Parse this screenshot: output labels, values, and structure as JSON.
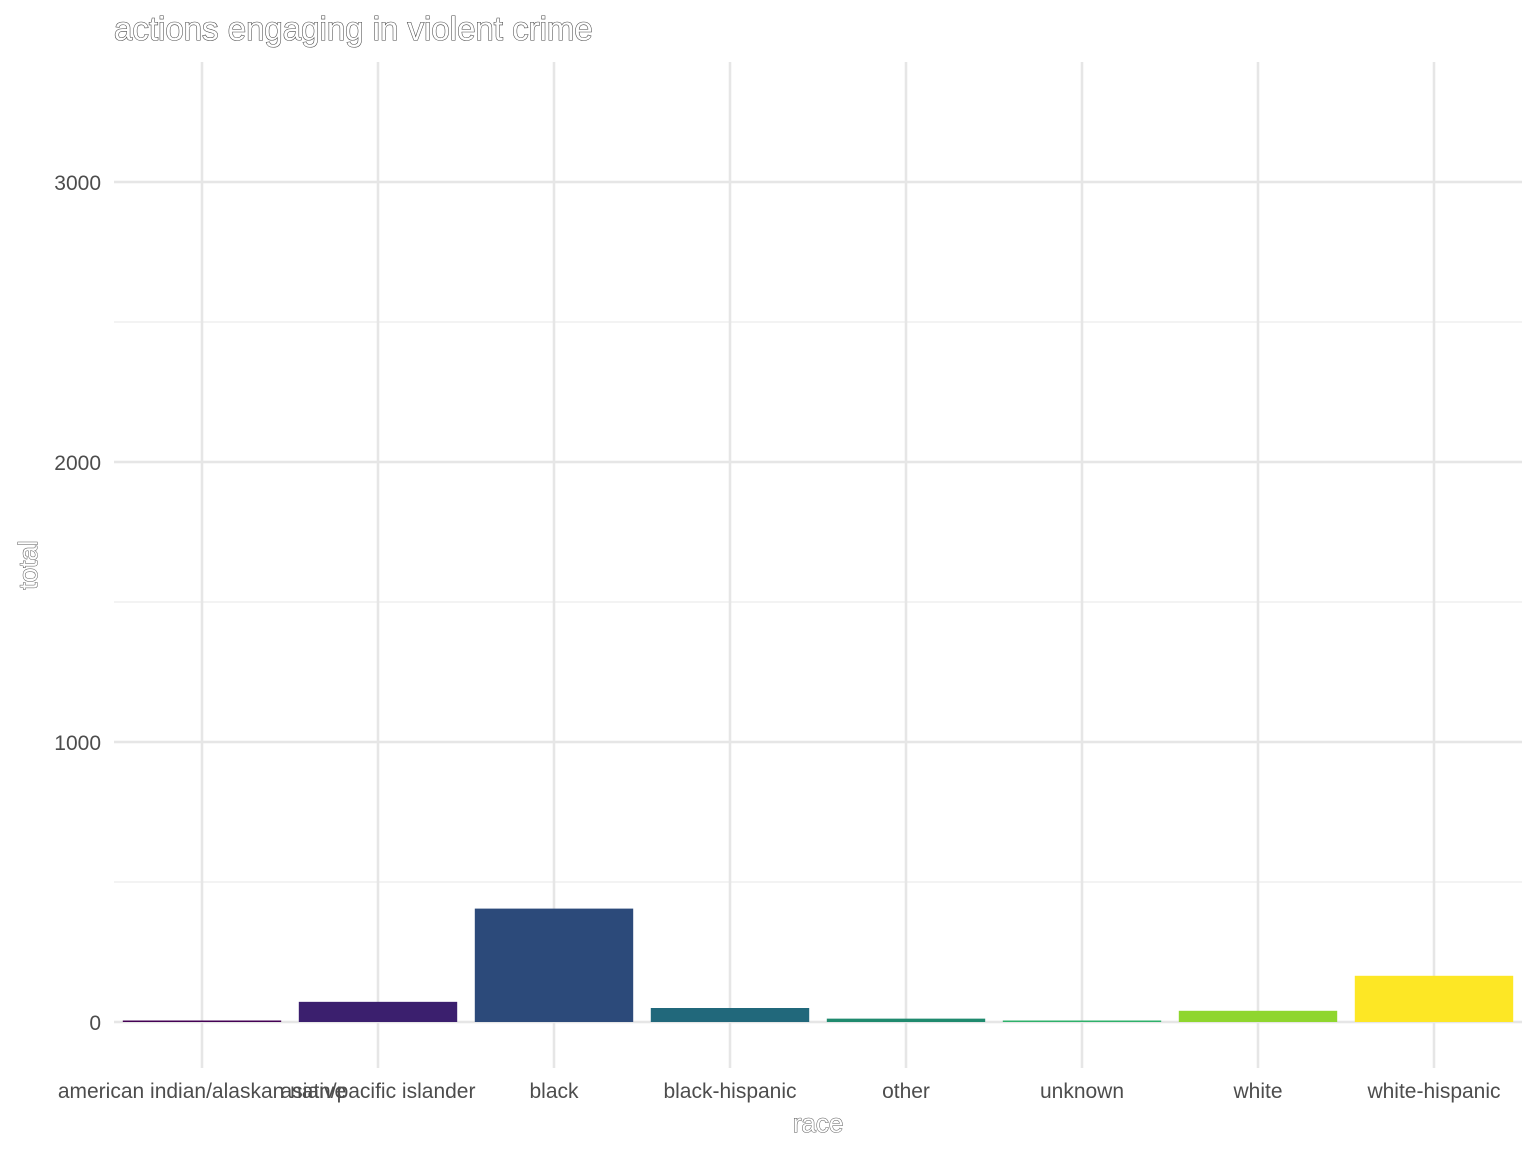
{
  "chart_data": {
    "type": "bar",
    "title": "actions engaging in violent crime",
    "xlabel": "race",
    "ylabel": "total",
    "categories": [
      "american indian/alaskan native",
      "asian/pacific islander",
      "black",
      "black-hispanic",
      "other",
      "unknown",
      "white",
      "white-hispanic"
    ],
    "values": [
      3,
      72,
      405,
      50,
      12,
      4,
      40,
      165
    ],
    "colors": [
      "#440154",
      "#3b1f6e",
      "#2c4a7a",
      "#21687b",
      "#1f8a6e",
      "#2eb06a",
      "#8fd62e",
      "#fde725"
    ],
    "ylim": [
      -160,
      3430
    ],
    "yticks": [
      0,
      1000,
      2000,
      3000
    ],
    "grid": true,
    "legend": "none"
  }
}
